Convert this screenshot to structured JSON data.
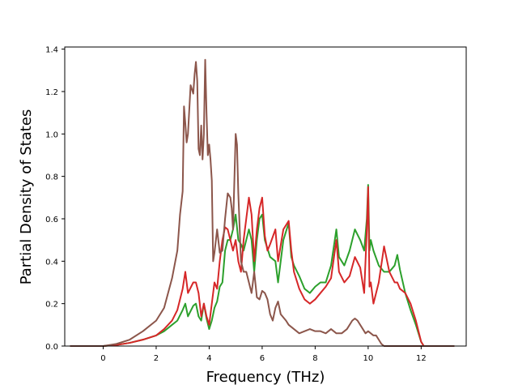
{
  "chart_data": {
    "type": "line",
    "title": "",
    "xlabel": "Frequency (THz)",
    "ylabel": "Partial Density of States",
    "xlim": [
      -1.45,
      13.7
    ],
    "ylim": [
      0.0,
      1.41
    ],
    "xticks": [
      0,
      2,
      4,
      6,
      8,
      10,
      12
    ],
    "xtick_labels": [
      "0",
      "2",
      "4",
      "6",
      "8",
      "10",
      "12"
    ],
    "yticks": [
      0.0,
      0.2,
      0.4,
      0.6,
      0.8,
      1.0,
      1.2,
      1.4
    ],
    "ytick_labels": [
      "0.0",
      "0.2",
      "0.4",
      "0.6",
      "0.8",
      "1.0",
      "1.2",
      "1.4"
    ],
    "grid": false,
    "legend": "none",
    "series": [
      {
        "color": "#2ca02c",
        "points": [
          [
            -1.25,
            0.0
          ],
          [
            0.0,
            0.0
          ],
          [
            0.5,
            0.005
          ],
          [
            1.0,
            0.015
          ],
          [
            1.5,
            0.03
          ],
          [
            2.0,
            0.05
          ],
          [
            2.3,
            0.07
          ],
          [
            2.6,
            0.1
          ],
          [
            2.8,
            0.12
          ],
          [
            3.0,
            0.17
          ],
          [
            3.1,
            0.2
          ],
          [
            3.2,
            0.14
          ],
          [
            3.4,
            0.19
          ],
          [
            3.5,
            0.2
          ],
          [
            3.6,
            0.14
          ],
          [
            3.7,
            0.12
          ],
          [
            3.8,
            0.2
          ],
          [
            3.9,
            0.13
          ],
          [
            4.0,
            0.08
          ],
          [
            4.1,
            0.12
          ],
          [
            4.2,
            0.18
          ],
          [
            4.3,
            0.21
          ],
          [
            4.4,
            0.28
          ],
          [
            4.5,
            0.3
          ],
          [
            4.6,
            0.45
          ],
          [
            4.7,
            0.5
          ],
          [
            4.8,
            0.5
          ],
          [
            4.9,
            0.55
          ],
          [
            5.0,
            0.62
          ],
          [
            5.1,
            0.5
          ],
          [
            5.2,
            0.48
          ],
          [
            5.3,
            0.45
          ],
          [
            5.5,
            0.55
          ],
          [
            5.6,
            0.5
          ],
          [
            5.7,
            0.35
          ],
          [
            5.8,
            0.5
          ],
          [
            5.9,
            0.6
          ],
          [
            6.0,
            0.62
          ],
          [
            6.1,
            0.5
          ],
          [
            6.2,
            0.46
          ],
          [
            6.3,
            0.42
          ],
          [
            6.5,
            0.4
          ],
          [
            6.6,
            0.3
          ],
          [
            6.8,
            0.5
          ],
          [
            7.0,
            0.58
          ],
          [
            7.1,
            0.42
          ],
          [
            7.2,
            0.38
          ],
          [
            7.4,
            0.33
          ],
          [
            7.6,
            0.27
          ],
          [
            7.8,
            0.25
          ],
          [
            8.0,
            0.28
          ],
          [
            8.2,
            0.3
          ],
          [
            8.4,
            0.3
          ],
          [
            8.6,
            0.38
          ],
          [
            8.8,
            0.55
          ],
          [
            8.9,
            0.42
          ],
          [
            9.1,
            0.38
          ],
          [
            9.3,
            0.45
          ],
          [
            9.5,
            0.55
          ],
          [
            9.7,
            0.5
          ],
          [
            9.85,
            0.45
          ],
          [
            9.95,
            0.6
          ],
          [
            10.0,
            0.76
          ],
          [
            10.05,
            0.45
          ],
          [
            10.1,
            0.5
          ],
          [
            10.2,
            0.45
          ],
          [
            10.4,
            0.38
          ],
          [
            10.6,
            0.35
          ],
          [
            10.8,
            0.35
          ],
          [
            11.0,
            0.38
          ],
          [
            11.1,
            0.43
          ],
          [
            11.2,
            0.36
          ],
          [
            11.4,
            0.25
          ],
          [
            11.6,
            0.17
          ],
          [
            11.8,
            0.1
          ],
          [
            12.0,
            0.02
          ],
          [
            12.1,
            0.0
          ],
          [
            13.25,
            0.0
          ]
        ]
      },
      {
        "color": "#d62728",
        "points": [
          [
            -1.25,
            0.0
          ],
          [
            0.0,
            0.0
          ],
          [
            0.5,
            0.005
          ],
          [
            1.0,
            0.015
          ],
          [
            1.5,
            0.03
          ],
          [
            2.0,
            0.05
          ],
          [
            2.3,
            0.08
          ],
          [
            2.6,
            0.12
          ],
          [
            2.8,
            0.17
          ],
          [
            3.0,
            0.27
          ],
          [
            3.1,
            0.35
          ],
          [
            3.2,
            0.25
          ],
          [
            3.4,
            0.3
          ],
          [
            3.5,
            0.3
          ],
          [
            3.6,
            0.25
          ],
          [
            3.7,
            0.14
          ],
          [
            3.8,
            0.2
          ],
          [
            3.9,
            0.14
          ],
          [
            4.0,
            0.1
          ],
          [
            4.1,
            0.2
          ],
          [
            4.2,
            0.3
          ],
          [
            4.3,
            0.27
          ],
          [
            4.4,
            0.4
          ],
          [
            4.5,
            0.5
          ],
          [
            4.6,
            0.56
          ],
          [
            4.7,
            0.55
          ],
          [
            4.8,
            0.5
          ],
          [
            4.9,
            0.45
          ],
          [
            5.0,
            0.5
          ],
          [
            5.1,
            0.4
          ],
          [
            5.2,
            0.35
          ],
          [
            5.3,
            0.5
          ],
          [
            5.4,
            0.6
          ],
          [
            5.5,
            0.7
          ],
          [
            5.6,
            0.62
          ],
          [
            5.7,
            0.4
          ],
          [
            5.8,
            0.55
          ],
          [
            5.9,
            0.65
          ],
          [
            6.0,
            0.7
          ],
          [
            6.1,
            0.52
          ],
          [
            6.2,
            0.45
          ],
          [
            6.3,
            0.48
          ],
          [
            6.5,
            0.55
          ],
          [
            6.6,
            0.4
          ],
          [
            6.8,
            0.55
          ],
          [
            7.0,
            0.59
          ],
          [
            7.1,
            0.45
          ],
          [
            7.2,
            0.35
          ],
          [
            7.4,
            0.27
          ],
          [
            7.6,
            0.22
          ],
          [
            7.8,
            0.2
          ],
          [
            8.0,
            0.22
          ],
          [
            8.2,
            0.25
          ],
          [
            8.4,
            0.28
          ],
          [
            8.6,
            0.32
          ],
          [
            8.8,
            0.5
          ],
          [
            8.9,
            0.35
          ],
          [
            9.1,
            0.3
          ],
          [
            9.3,
            0.33
          ],
          [
            9.5,
            0.42
          ],
          [
            9.7,
            0.37
          ],
          [
            9.85,
            0.25
          ],
          [
            9.95,
            0.55
          ],
          [
            10.0,
            0.75
          ],
          [
            10.05,
            0.28
          ],
          [
            10.1,
            0.3
          ],
          [
            10.2,
            0.2
          ],
          [
            10.4,
            0.3
          ],
          [
            10.6,
            0.47
          ],
          [
            10.8,
            0.35
          ],
          [
            11.0,
            0.3
          ],
          [
            11.1,
            0.3
          ],
          [
            11.2,
            0.27
          ],
          [
            11.4,
            0.25
          ],
          [
            11.6,
            0.2
          ],
          [
            11.8,
            0.12
          ],
          [
            12.0,
            0.02
          ],
          [
            12.1,
            0.0
          ],
          [
            13.25,
            0.0
          ]
        ]
      },
      {
        "color": "#8c564b",
        "points": [
          [
            -1.25,
            0.0
          ],
          [
            0.0,
            0.0
          ],
          [
            0.5,
            0.01
          ],
          [
            1.0,
            0.03
          ],
          [
            1.5,
            0.07
          ],
          [
            2.0,
            0.12
          ],
          [
            2.3,
            0.18
          ],
          [
            2.6,
            0.32
          ],
          [
            2.8,
            0.45
          ],
          [
            2.9,
            0.62
          ],
          [
            3.0,
            0.73
          ],
          [
            3.05,
            1.13
          ],
          [
            3.1,
            1.05
          ],
          [
            3.15,
            0.96
          ],
          [
            3.2,
            1.0
          ],
          [
            3.3,
            1.23
          ],
          [
            3.4,
            1.19
          ],
          [
            3.45,
            1.28
          ],
          [
            3.5,
            1.34
          ],
          [
            3.55,
            1.25
          ],
          [
            3.6,
            0.93
          ],
          [
            3.65,
            0.9
          ],
          [
            3.7,
            1.04
          ],
          [
            3.75,
            0.88
          ],
          [
            3.8,
            1.0
          ],
          [
            3.85,
            1.35
          ],
          [
            3.9,
            1.1
          ],
          [
            3.95,
            0.9
          ],
          [
            4.0,
            0.95
          ],
          [
            4.05,
            0.88
          ],
          [
            4.1,
            0.78
          ],
          [
            4.15,
            0.4
          ],
          [
            4.2,
            0.44
          ],
          [
            4.3,
            0.55
          ],
          [
            4.4,
            0.44
          ],
          [
            4.5,
            0.45
          ],
          [
            4.6,
            0.6
          ],
          [
            4.7,
            0.72
          ],
          [
            4.8,
            0.7
          ],
          [
            4.85,
            0.65
          ],
          [
            4.9,
            0.55
          ],
          [
            5.0,
            1.0
          ],
          [
            5.05,
            0.95
          ],
          [
            5.1,
            0.72
          ],
          [
            5.2,
            0.4
          ],
          [
            5.3,
            0.35
          ],
          [
            5.4,
            0.35
          ],
          [
            5.5,
            0.3
          ],
          [
            5.6,
            0.25
          ],
          [
            5.7,
            0.35
          ],
          [
            5.8,
            0.23
          ],
          [
            5.9,
            0.22
          ],
          [
            6.0,
            0.26
          ],
          [
            6.1,
            0.25
          ],
          [
            6.2,
            0.22
          ],
          [
            6.3,
            0.15
          ],
          [
            6.4,
            0.12
          ],
          [
            6.5,
            0.18
          ],
          [
            6.6,
            0.21
          ],
          [
            6.7,
            0.15
          ],
          [
            6.9,
            0.12
          ],
          [
            7.0,
            0.1
          ],
          [
            7.2,
            0.08
          ],
          [
            7.4,
            0.06
          ],
          [
            7.6,
            0.07
          ],
          [
            7.8,
            0.08
          ],
          [
            8.0,
            0.07
          ],
          [
            8.2,
            0.07
          ],
          [
            8.4,
            0.06
          ],
          [
            8.6,
            0.08
          ],
          [
            8.8,
            0.06
          ],
          [
            9.0,
            0.06
          ],
          [
            9.2,
            0.08
          ],
          [
            9.4,
            0.12
          ],
          [
            9.5,
            0.13
          ],
          [
            9.6,
            0.12
          ],
          [
            9.8,
            0.08
          ],
          [
            9.9,
            0.06
          ],
          [
            10.0,
            0.07
          ],
          [
            10.1,
            0.06
          ],
          [
            10.2,
            0.05
          ],
          [
            10.3,
            0.05
          ],
          [
            10.4,
            0.03
          ],
          [
            10.5,
            0.01
          ],
          [
            10.6,
            0.0
          ],
          [
            13.25,
            0.0
          ]
        ]
      }
    ]
  }
}
